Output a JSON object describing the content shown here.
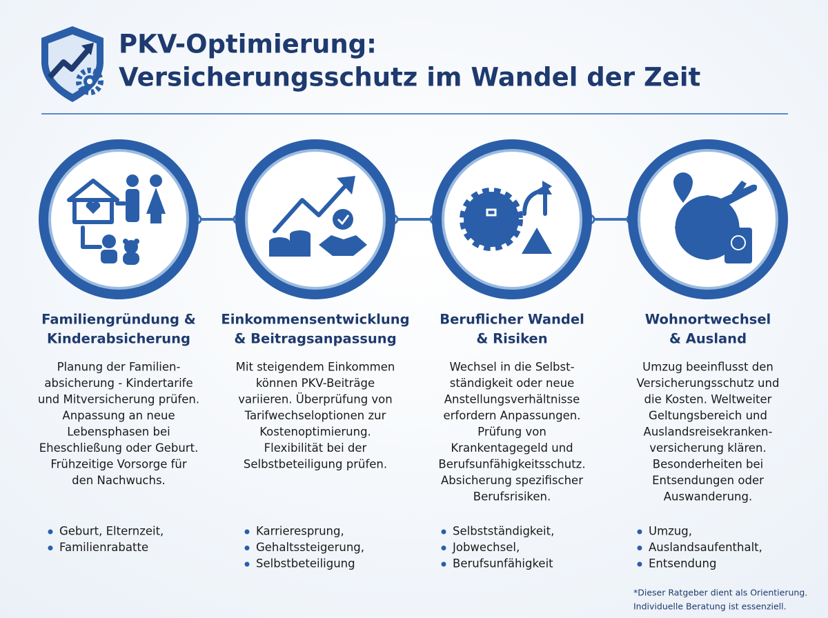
{
  "header": {
    "title": [
      "PKV-Optimierung:",
      "Versicherungsschutz im Wandel der Zeit"
    ]
  },
  "columns": [
    {
      "heading": [
        "Familiengründung &",
        "Kinderabsicherung"
      ],
      "body": [
        "Planung der Familien-",
        "absicherung - Kindertarife",
        "und Mitversicherung prüfen.",
        "Anpassung an neue",
        "Lebensphasen bei",
        "Eheschließung oder Geburt.",
        "Frühzeitige Vorsorge für",
        "den Nachwuchs."
      ],
      "bullets": [
        "Geburt, Elternzeit,",
        "Familienrabatte"
      ]
    },
    {
      "heading": [
        "Einkommensentwicklung",
        "& Beitragsanpassung"
      ],
      "body": [
        "Mit steigendem Einkommen",
        "können PKV-Beiträge",
        "variieren. Überprüfung von",
        "Tarifwechseloptionen zur",
        "Kostenoptimierung.",
        "Flexibilität bei der",
        "Selbstbeteiligung prüfen."
      ],
      "bullets": [
        "Karrieresprung,",
        "Gehaltssteigerung,",
        "Selbstbeteiligung"
      ]
    },
    {
      "heading": [
        "Beruflicher Wandel",
        "& Risiken"
      ],
      "body": [
        "Wechsel in die Selbst-",
        "ständigkeit oder neue",
        "Anstellungsverhältnisse",
        "erfordern Anpassungen.",
        "Prüfung von",
        "Krankentagegeld und",
        "Berufsunfähigkeitsschutz.",
        "Absicherung spezifischer",
        "Berufsrisiken."
      ],
      "bullets": [
        "Selbstständigkeit,",
        "Jobwechsel,",
        "Berufsunfähigkeit"
      ]
    },
    {
      "heading": [
        "Wohnortwechsel",
        "& Ausland"
      ],
      "body": [
        "Umzug beeinflusst den",
        "Versicherungsschutz und",
        "die Kosten. Weltweiter",
        "Geltungsbereich und",
        "Auslandsreisekranken-",
        "versicherung klären.",
        "Besonderheiten bei",
        "Entsendungen oder",
        "Auswanderung."
      ],
      "bullets": [
        "Umzug,",
        "Auslandsaufenthalt,",
        "Entsendung"
      ]
    }
  ],
  "footnote": [
    "*Dieser Ratgeber dient als Orientierung.",
    "Individuelle Beratung ist essenziell."
  ]
}
